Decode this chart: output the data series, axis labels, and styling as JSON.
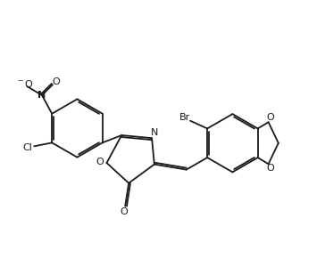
{
  "bg": "#ffffff",
  "lc": "#1a1a1a",
  "lw": 1.3,
  "fs": 8.0,
  "fw": 3.64,
  "fh": 3.0,
  "dpi": 100,
  "xlim": [
    0.0,
    8.5
  ],
  "ylim": [
    0.3,
    7.8
  ]
}
